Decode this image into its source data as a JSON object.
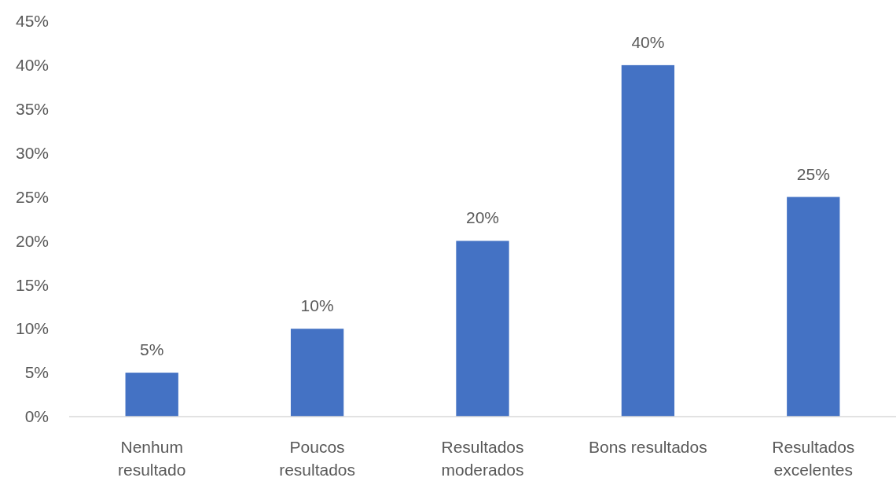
{
  "chart_data": {
    "type": "bar",
    "categories": [
      "Nenhum resultado",
      "Poucos resultados",
      "Resultados moderados",
      "Bons resultados",
      "Resultados excelentes"
    ],
    "values": [
      5,
      10,
      20,
      40,
      25
    ],
    "value_labels": [
      "5%",
      "10%",
      "20%",
      "40%",
      "25%"
    ],
    "color": "#4472c4",
    "ylim": [
      0,
      45
    ],
    "yticks": [
      {
        "value": 0,
        "label": "0%"
      },
      {
        "value": 5,
        "label": "5%"
      },
      {
        "value": 10,
        "label": "10%"
      },
      {
        "value": 15,
        "label": "15%"
      },
      {
        "value": 20,
        "label": "20%"
      },
      {
        "value": 25,
        "label": "25%"
      },
      {
        "value": 30,
        "label": "30%"
      },
      {
        "value": 35,
        "label": "35%"
      },
      {
        "value": 40,
        "label": "40%"
      },
      {
        "value": 45,
        "label": "45%"
      }
    ],
    "grid": false
  }
}
